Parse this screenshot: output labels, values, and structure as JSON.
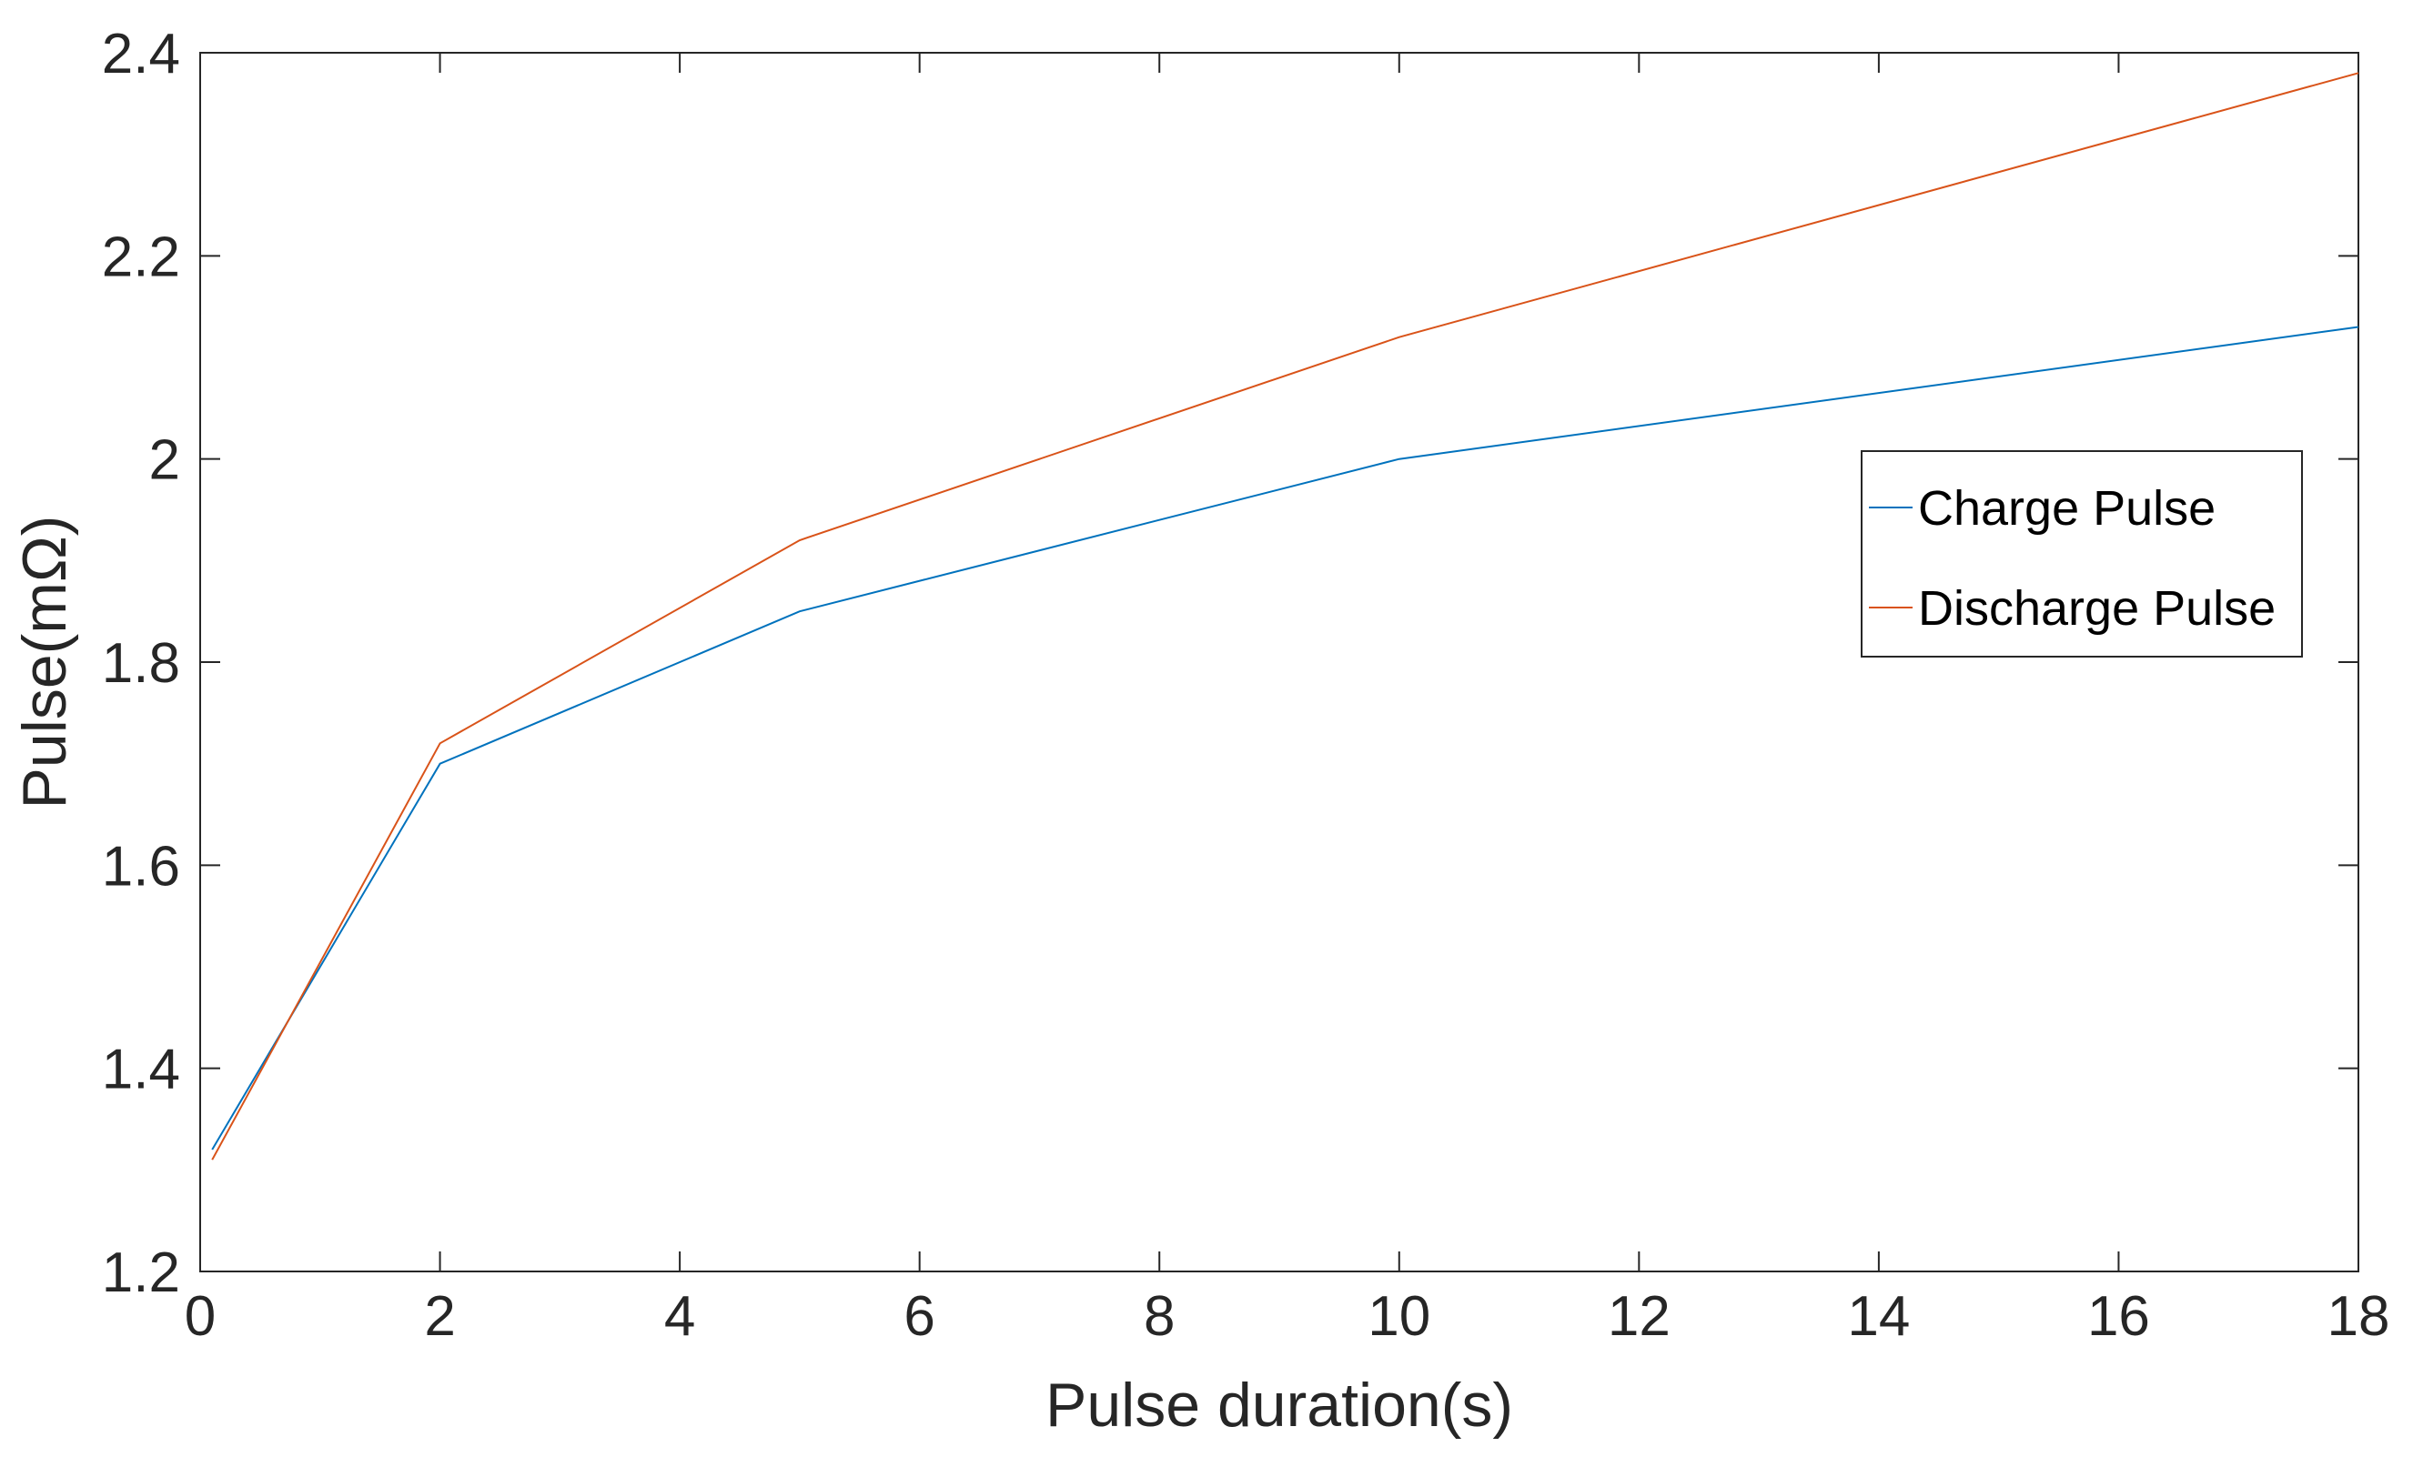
{
  "chart_data": {
    "type": "line",
    "title": "",
    "xlabel": "Pulse duration(s)",
    "ylabel": "Pulse(mΩ)",
    "xlim": [
      0,
      18
    ],
    "ylim": [
      1.2,
      2.4
    ],
    "xticks": [
      0,
      2,
      4,
      6,
      8,
      10,
      12,
      14,
      16,
      18
    ],
    "xtick_labels": [
      "0",
      "2",
      "4",
      "6",
      "8",
      "10",
      "12",
      "14",
      "16",
      "18"
    ],
    "yticks": [
      1.2,
      1.4,
      1.6,
      1.8,
      2.0,
      2.2,
      2.4
    ],
    "ytick_labels": [
      "1.2",
      "1.4",
      "1.6",
      "1.8",
      "2",
      "2.2",
      "2.4"
    ],
    "grid": false,
    "legend_position": "right",
    "x": [
      0.1,
      2,
      5,
      10,
      18
    ],
    "series": [
      {
        "name": "Charge Pulse",
        "color": "#0072BD",
        "values": [
          1.32,
          1.7,
          1.85,
          2.0,
          2.13
        ]
      },
      {
        "name": "Discharge Pulse",
        "color": "#D95319",
        "values": [
          1.31,
          1.72,
          1.92,
          2.12,
          2.38
        ]
      }
    ]
  }
}
